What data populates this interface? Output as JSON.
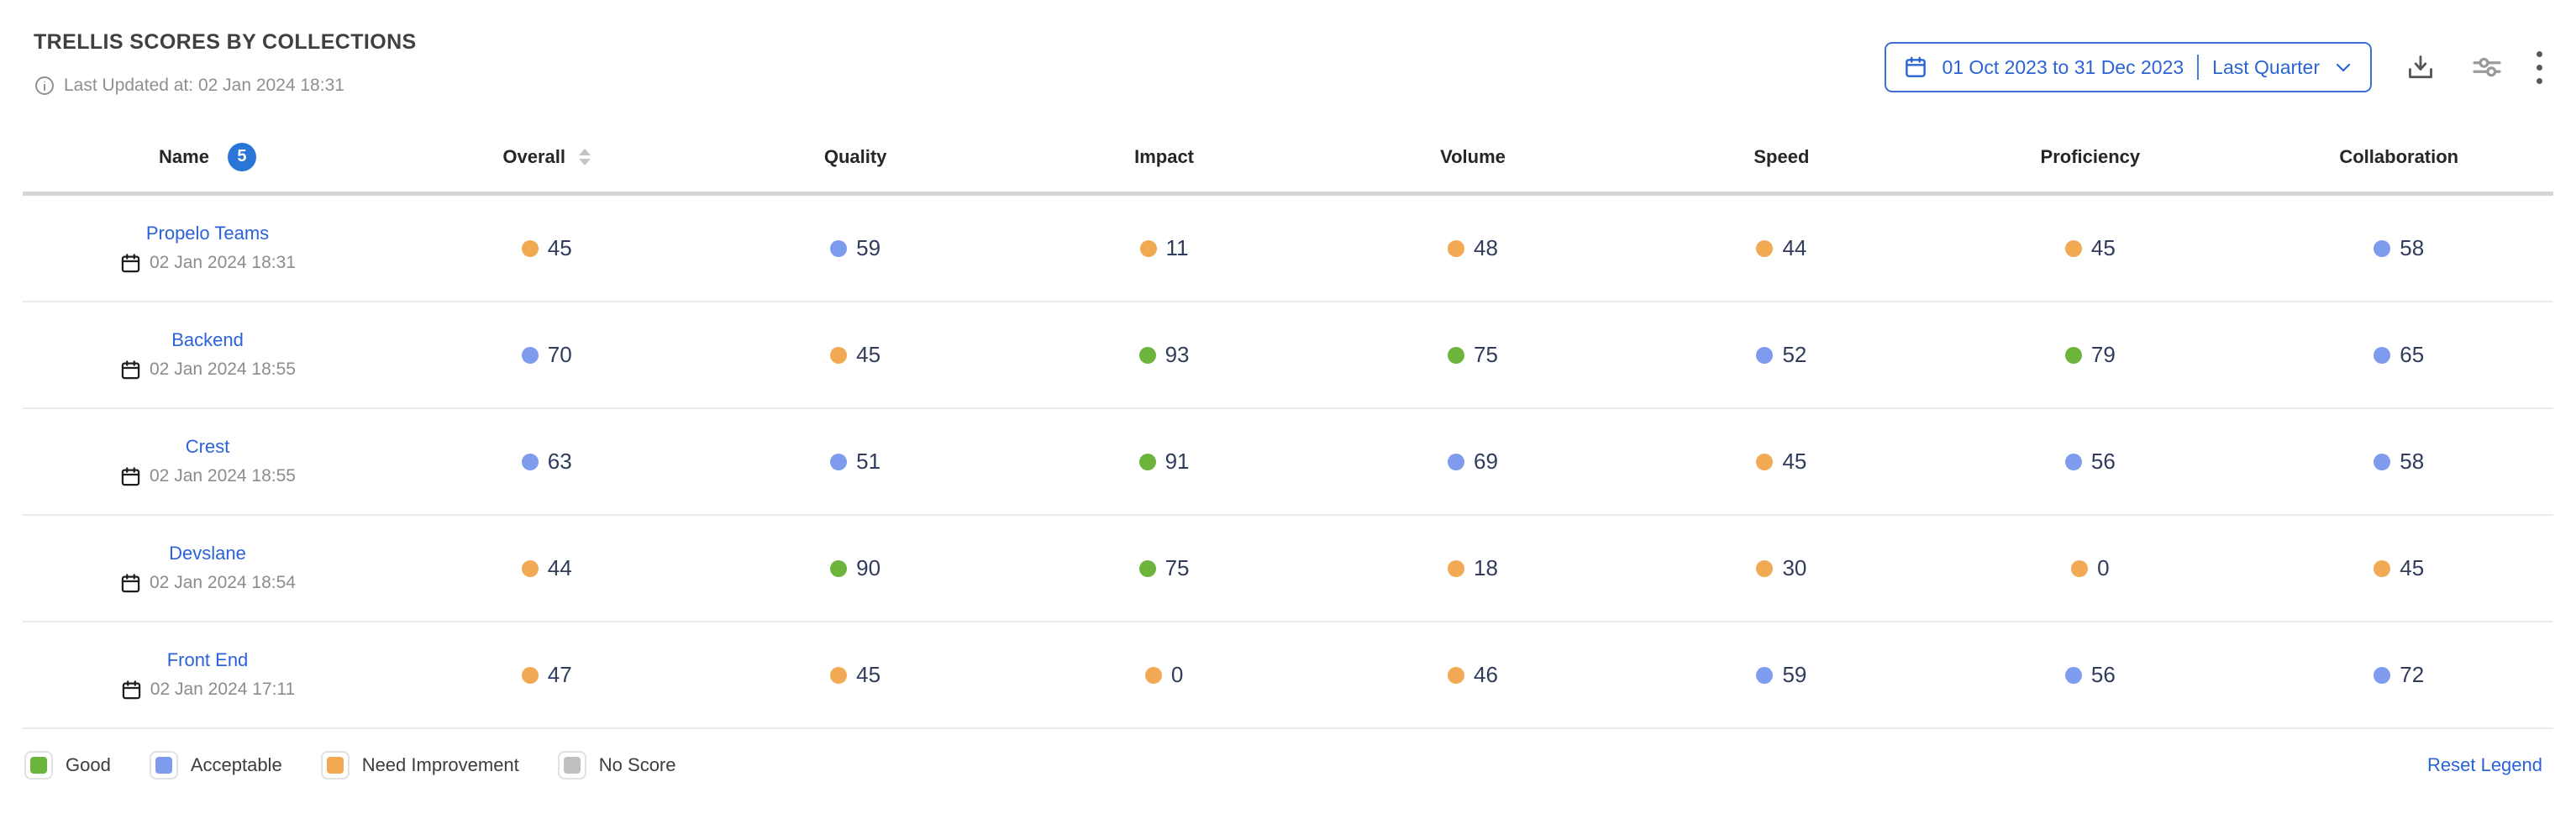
{
  "header": {
    "title": "TRELLIS SCORES BY COLLECTIONS",
    "last_updated": "Last Updated at: 02 Jan 2024 18:31",
    "date_range": {
      "label": "01 Oct 2023 to 31 Dec 2023",
      "preset": "Last Quarter"
    }
  },
  "table": {
    "columns": [
      "Name",
      "Overall",
      "Quality",
      "Impact",
      "Volume",
      "Speed",
      "Proficiency",
      "Collaboration"
    ],
    "name_badge_count": "5",
    "rows": [
      {
        "name": "Propelo Teams",
        "date": "02 Jan 2024 18:31",
        "scores": [
          {
            "value": 45,
            "status": "need_improvement"
          },
          {
            "value": 59,
            "status": "acceptable"
          },
          {
            "value": 11,
            "status": "need_improvement"
          },
          {
            "value": 48,
            "status": "need_improvement"
          },
          {
            "value": 44,
            "status": "need_improvement"
          },
          {
            "value": 45,
            "status": "need_improvement"
          },
          {
            "value": 58,
            "status": "acceptable"
          }
        ]
      },
      {
        "name": "Backend",
        "date": "02 Jan 2024 18:55",
        "scores": [
          {
            "value": 70,
            "status": "acceptable"
          },
          {
            "value": 45,
            "status": "need_improvement"
          },
          {
            "value": 93,
            "status": "good"
          },
          {
            "value": 75,
            "status": "good"
          },
          {
            "value": 52,
            "status": "acceptable"
          },
          {
            "value": 79,
            "status": "good"
          },
          {
            "value": 65,
            "status": "acceptable"
          }
        ]
      },
      {
        "name": "Crest",
        "date": "02 Jan 2024 18:55",
        "scores": [
          {
            "value": 63,
            "status": "acceptable"
          },
          {
            "value": 51,
            "status": "acceptable"
          },
          {
            "value": 91,
            "status": "good"
          },
          {
            "value": 69,
            "status": "acceptable"
          },
          {
            "value": 45,
            "status": "need_improvement"
          },
          {
            "value": 56,
            "status": "acceptable"
          },
          {
            "value": 58,
            "status": "acceptable"
          }
        ]
      },
      {
        "name": "Devslane",
        "date": "02 Jan 2024 18:54",
        "scores": [
          {
            "value": 44,
            "status": "need_improvement"
          },
          {
            "value": 90,
            "status": "good"
          },
          {
            "value": 75,
            "status": "good"
          },
          {
            "value": 18,
            "status": "need_improvement"
          },
          {
            "value": 30,
            "status": "need_improvement"
          },
          {
            "value": 0,
            "status": "need_improvement"
          },
          {
            "value": 45,
            "status": "need_improvement"
          }
        ]
      },
      {
        "name": "Front End",
        "date": "02 Jan 2024 17:11",
        "scores": [
          {
            "value": 47,
            "status": "need_improvement"
          },
          {
            "value": 45,
            "status": "need_improvement"
          },
          {
            "value": 0,
            "status": "need_improvement"
          },
          {
            "value": 46,
            "status": "need_improvement"
          },
          {
            "value": 59,
            "status": "acceptable"
          },
          {
            "value": 56,
            "status": "acceptable"
          },
          {
            "value": 72,
            "status": "acceptable"
          }
        ]
      }
    ]
  },
  "legend": {
    "items": [
      {
        "label": "Good",
        "key": "good"
      },
      {
        "label": "Acceptable",
        "key": "acceptable"
      },
      {
        "label": "Need Improvement",
        "key": "need_improvement"
      },
      {
        "label": "No Score",
        "key": "no_score"
      }
    ],
    "reset_label": "Reset Legend"
  },
  "colors": {
    "good": "#6CB43C",
    "acceptable": "#7E9BEE",
    "need_improvement": "#F2A954",
    "no_score": "#BFBFBF",
    "accent_blue": "#2A64D4"
  }
}
